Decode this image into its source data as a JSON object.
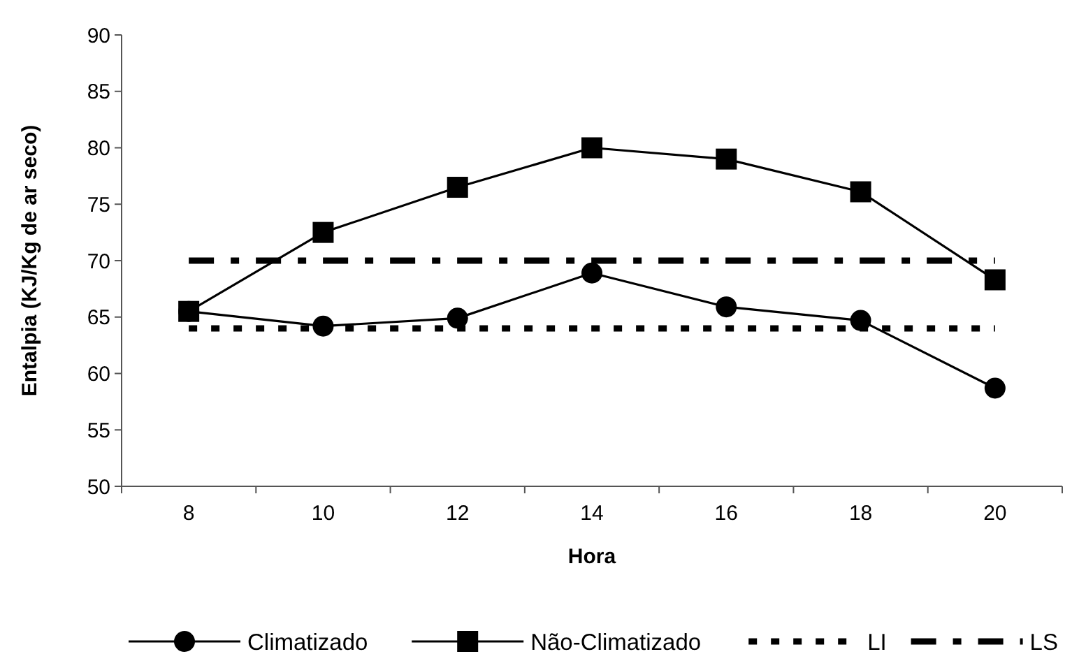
{
  "chart_data": {
    "type": "line",
    "xlabel": "Hora",
    "ylabel": "Entalpia (KJ/Kg de ar seco)",
    "categories": [
      "8",
      "10",
      "12",
      "14",
      "16",
      "18",
      "20"
    ],
    "ylim": [
      50,
      90
    ],
    "yticks": [
      50,
      55,
      60,
      65,
      70,
      75,
      80,
      85,
      90
    ],
    "grid": false,
    "legend": "bottom",
    "series": [
      {
        "name": "Climatizado",
        "color": "#000000",
        "marker": "circle",
        "line_style": "solid",
        "values": [
          65.5,
          64.2,
          64.9,
          68.9,
          65.9,
          64.7,
          58.7
        ]
      },
      {
        "name": "Não-Climatizado",
        "color": "#000000",
        "marker": "square",
        "line_style": "solid",
        "values": [
          65.5,
          72.5,
          76.5,
          80,
          79,
          76.1,
          68.3
        ]
      },
      {
        "name": "LI",
        "color": "#000000",
        "marker": "none",
        "line_style": "dotted",
        "values": [
          64,
          64,
          64,
          64,
          64,
          64,
          64
        ]
      },
      {
        "name": "LS",
        "color": "#000000",
        "marker": "none",
        "line_style": "dashed",
        "values": [
          70,
          70,
          70,
          70,
          70,
          70,
          70
        ]
      }
    ]
  }
}
